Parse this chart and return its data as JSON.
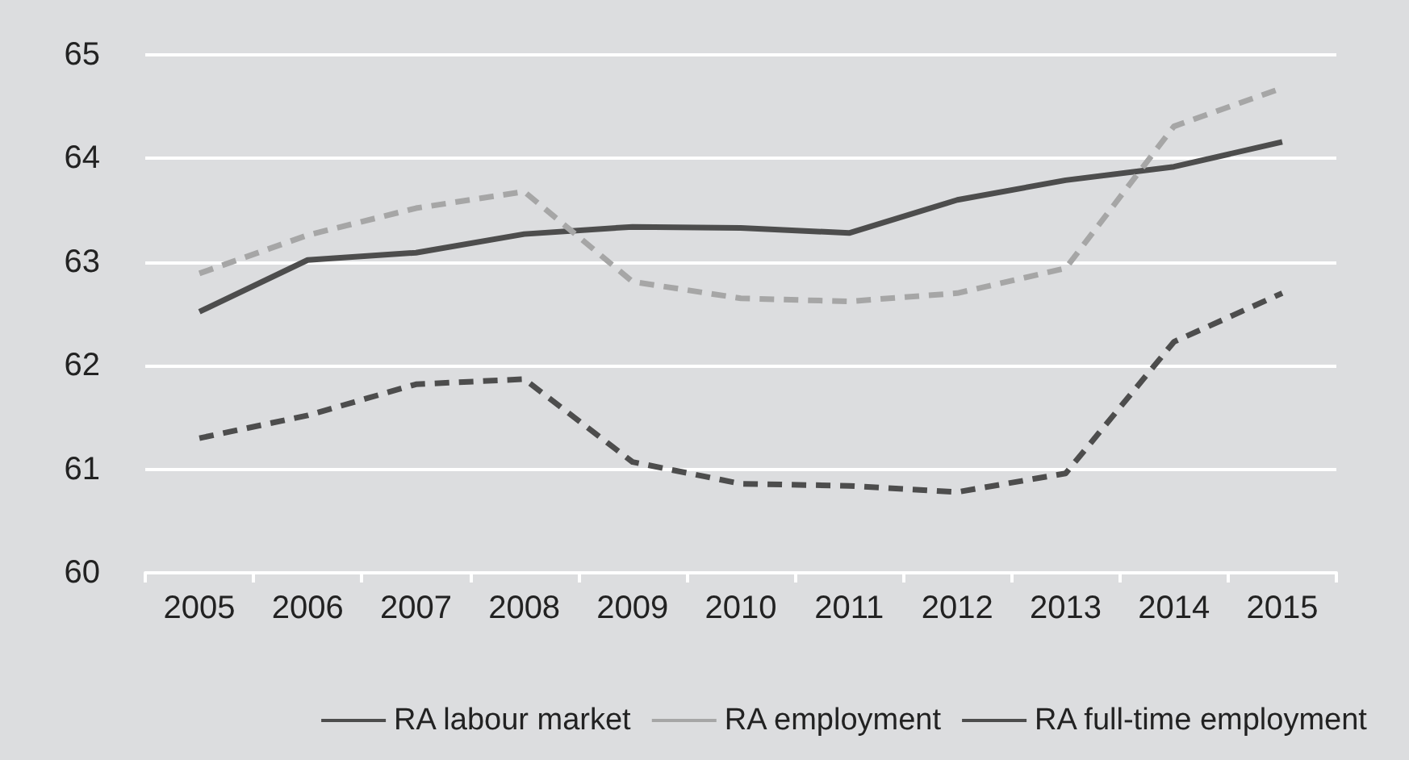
{
  "chart_data": {
    "type": "line",
    "categories": [
      "2005",
      "2006",
      "2007",
      "2008",
      "2009",
      "2010",
      "2011",
      "2012",
      "2013",
      "2014",
      "2015"
    ],
    "series": [
      {
        "name": "RA labour market",
        "color": "#4d4d4d",
        "line_style": "solid",
        "values": [
          62.52,
          63.02,
          63.09,
          63.27,
          63.34,
          63.33,
          63.28,
          63.6,
          63.79,
          63.92,
          64.16
        ]
      },
      {
        "name": "RA employment",
        "color": "#a6a6a6",
        "line_style": "dashed",
        "values": [
          62.89,
          63.26,
          63.52,
          63.68,
          62.81,
          62.65,
          62.62,
          62.7,
          62.94,
          64.31,
          64.68
        ]
      },
      {
        "name": "RA full-time employment",
        "color": "#4d4d4d",
        "line_style": "dashed",
        "values": [
          61.3,
          61.52,
          61.82,
          61.87,
          61.07,
          60.86,
          60.84,
          60.78,
          60.96,
          62.23,
          62.7
        ]
      }
    ],
    "ylim": [
      60,
      65
    ],
    "yticks": [
      60,
      61,
      62,
      63,
      64,
      65
    ],
    "grid": "y",
    "legend": "bottom",
    "marker": "none"
  }
}
